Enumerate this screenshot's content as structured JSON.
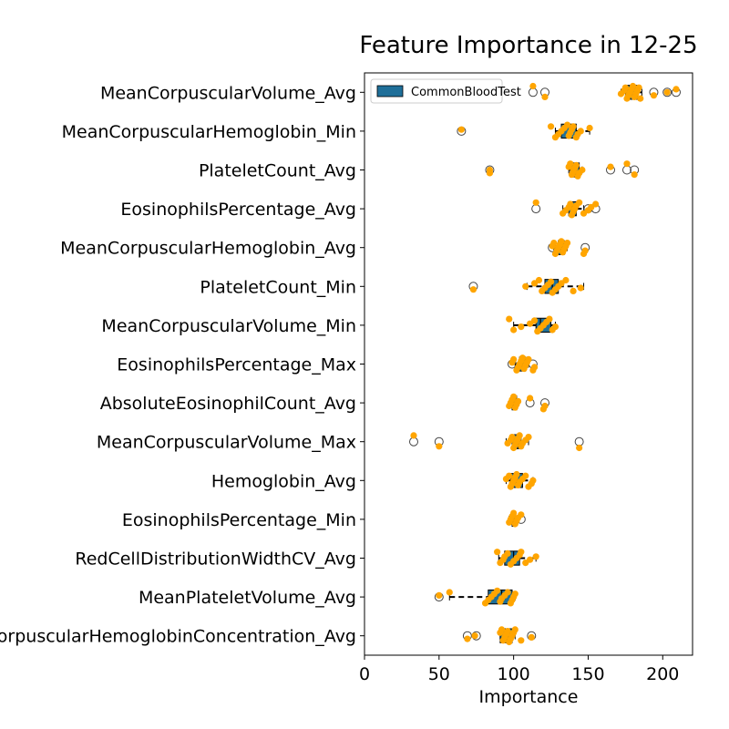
{
  "chart_data": {
    "type": "boxplot",
    "title": "Feature Importance in 12-25",
    "xlabel": "Importance",
    "xlim": [
      0,
      220
    ],
    "xticks": [
      0,
      50,
      100,
      150,
      200
    ],
    "legend": {
      "label": "CommonBloodTest",
      "color": "#1f6f99",
      "placement": "top-left"
    },
    "box_color": "#1f6f99",
    "point_color": "#ffa500",
    "features": [
      {
        "name": "MeanCorpuscularVolume_Avg",
        "whisker_low": 172,
        "q1": 175,
        "median": 178,
        "q3": 183,
        "whisker_high": 186,
        "outliers": [
          113,
          121,
          194,
          203,
          209
        ],
        "points": [
          113,
          121,
          172,
          174,
          175,
          176,
          177,
          178,
          179,
          180,
          181,
          182,
          183,
          184,
          185,
          194,
          203,
          209
        ]
      },
      {
        "name": "MeanCorpuscularHemoglobin_Min",
        "whisker_low": 128,
        "q1": 132,
        "median": 138,
        "q3": 142,
        "whisker_high": 151,
        "outliers": [
          65
        ],
        "points": [
          65,
          125,
          128,
          130,
          132,
          134,
          136,
          137,
          138,
          139,
          140,
          142,
          143,
          145,
          151
        ]
      },
      {
        "name": "PlateletCount_Avg",
        "whisker_low": 137,
        "q1": 138,
        "median": 141,
        "q3": 144,
        "whisker_high": 146,
        "outliers": [
          84,
          165,
          176,
          181
        ],
        "points": [
          84,
          84,
          137,
          138,
          139,
          140,
          141,
          142,
          143,
          144,
          146,
          165,
          176,
          181
        ]
      },
      {
        "name": "EosinophilsPercentage_Avg",
        "whisker_low": 133,
        "q1": 137,
        "median": 139,
        "q3": 142,
        "whisker_high": 147,
        "outliers": [
          115,
          150,
          155
        ],
        "points": [
          115,
          133,
          135,
          137,
          138,
          139,
          140,
          141,
          142,
          144,
          147,
          150,
          152,
          155
        ]
      },
      {
        "name": "MeanCorpuscularHemoglobin_Avg",
        "whisker_low": 127,
        "q1": 130,
        "median": 132,
        "q3": 134,
        "whisker_high": 136,
        "outliers": [
          126,
          148
        ],
        "points": [
          126,
          127,
          128,
          129,
          130,
          131,
          132,
          133,
          134,
          135,
          136,
          147,
          148
        ]
      },
      {
        "name": "PlateletCount_Min",
        "whisker_low": 109,
        "q1": 121,
        "median": 126,
        "q3": 130,
        "whisker_high": 147,
        "outliers": [
          73
        ],
        "points": [
          73,
          108,
          114,
          117,
          119,
          121,
          123,
          125,
          126,
          128,
          130,
          132,
          135,
          140,
          145
        ]
      },
      {
        "name": "MeanCorpuscularVolume_Min",
        "whisker_low": 100,
        "q1": 115,
        "median": 118,
        "q3": 125,
        "whisker_high": 128,
        "outliers": [],
        "points": [
          97,
          100,
          105,
          111,
          114,
          116,
          118,
          120,
          122,
          124,
          126,
          128
        ]
      },
      {
        "name": "EosinophilsPercentage_Max",
        "whisker_low": 101,
        "q1": 104,
        "median": 106,
        "q3": 108,
        "whisker_high": 110,
        "outliers": [
          99,
          113
        ],
        "points": [
          99,
          100,
          102,
          103,
          104,
          105,
          106,
          107,
          108,
          109,
          110,
          113,
          114
        ]
      },
      {
        "name": "AbsoluteEosinophilCount_Avg",
        "whisker_low": 98,
        "q1": 99,
        "median": 100,
        "q3": 102,
        "whisker_high": 103,
        "outliers": [
          111,
          121
        ],
        "points": [
          97,
          98,
          99,
          100,
          101,
          102,
          103,
          111,
          120,
          121
        ]
      },
      {
        "name": "MeanCorpuscularVolume_Max",
        "whisker_low": 95,
        "q1": 99,
        "median": 103,
        "q3": 105,
        "whisker_high": 110,
        "outliers": [
          33,
          50,
          144
        ],
        "points": [
          33,
          50,
          96,
          98,
          99,
          100,
          101,
          102,
          103,
          104,
          105,
          106,
          108,
          110,
          144
        ]
      },
      {
        "name": "Hemoglobin_Avg",
        "whisker_low": 95,
        "q1": 98,
        "median": 102,
        "q3": 106,
        "whisker_high": 113,
        "outliers": [],
        "points": [
          95,
          97,
          98,
          99,
          100,
          101,
          102,
          103,
          104,
          106,
          108,
          110,
          112,
          113
        ]
      },
      {
        "name": "EosinophilsPercentage_Min",
        "whisker_low": 97,
        "q1": 99,
        "median": 100,
        "q3": 101,
        "whisker_high": 103,
        "outliers": [
          105
        ],
        "points": [
          97,
          98,
          99,
          100,
          101,
          102,
          103,
          105
        ]
      },
      {
        "name": "RedCellDistributionWidthCV_Avg",
        "whisker_low": 90,
        "q1": 94,
        "median": 100,
        "q3": 104,
        "whisker_high": 115,
        "outliers": [],
        "points": [
          89,
          91,
          93,
          94,
          96,
          98,
          100,
          102,
          104,
          105,
          108,
          111,
          115
        ]
      },
      {
        "name": "MeanPlateletVolume_Avg",
        "whisker_low": 57,
        "q1": 83,
        "median": 92,
        "q3": 99,
        "whisker_high": 101,
        "outliers": [
          50
        ],
        "points": [
          50,
          57,
          81,
          83,
          85,
          87,
          89,
          91,
          92,
          94,
          96,
          98,
          99,
          100,
          101
        ]
      },
      {
        "name": "MeanCorpuscularHemoglobinConcentration_Avg",
        "whisker_low": 91,
        "q1": 91,
        "median": 96,
        "q3": 99,
        "whisker_high": 101,
        "outliers": [
          69,
          75,
          112
        ],
        "points": [
          69,
          74,
          91,
          92,
          93,
          94,
          95,
          96,
          97,
          98,
          99,
          100,
          101,
          105,
          112
        ]
      }
    ]
  }
}
